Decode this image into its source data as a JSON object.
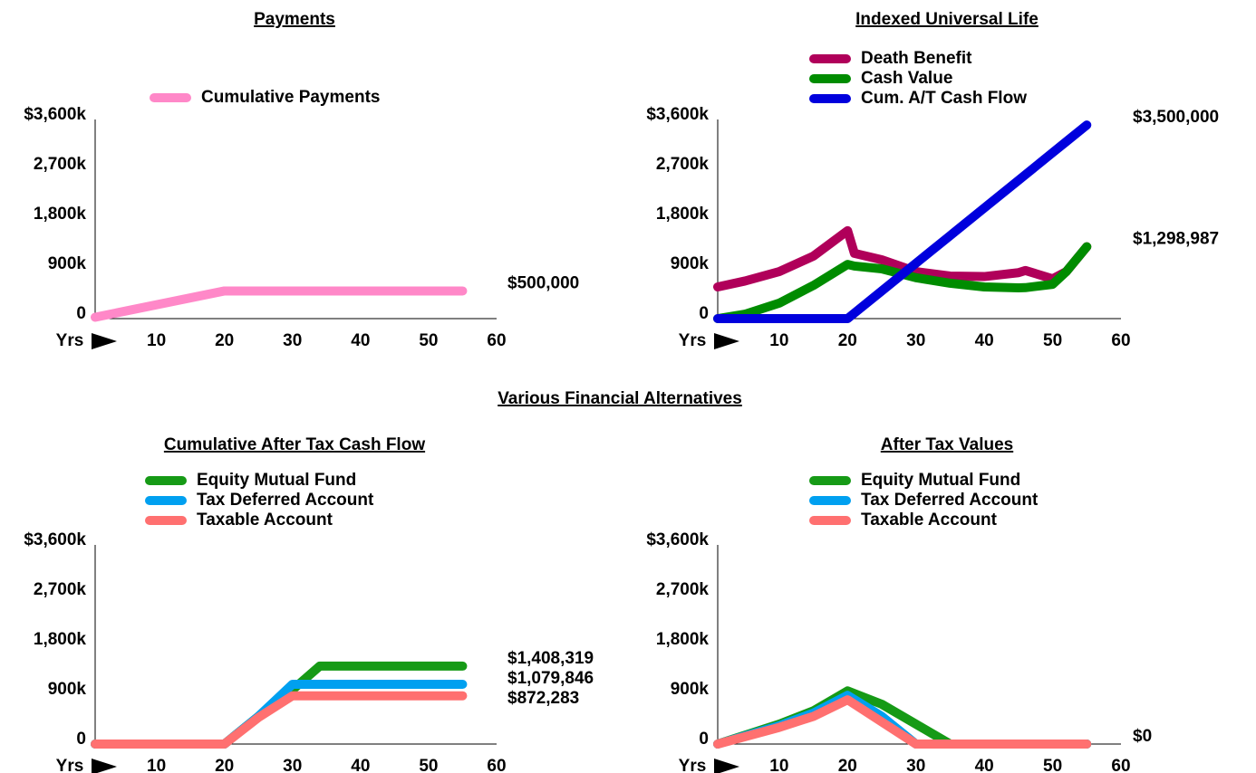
{
  "heading": "Various Financial Alternatives",
  "chart_data": [
    {
      "type": "line",
      "title": "Payments",
      "xlabel": "Yrs",
      "x": [
        1,
        20,
        55
      ],
      "xlim": [
        1,
        60
      ],
      "xticks": [
        10,
        20,
        30,
        40,
        50,
        60
      ],
      "ylim": [
        0,
        3600000
      ],
      "yticks": [
        0,
        {
          "value": 900000,
          "label": "900k"
        },
        {
          "value": 1800000,
          "label": "1,800k"
        },
        {
          "value": 2700000,
          "label": "2,700k"
        },
        {
          "value": 3600000,
          "label": "$3,600k"
        }
      ],
      "series": [
        {
          "name": "Cumulative Payments",
          "color": "#ff88c8",
          "values": [
            25000,
            500000,
            500000
          ],
          "end_label": "$500,000"
        }
      ]
    },
    {
      "type": "line",
      "title": "Indexed Universal Life",
      "xlabel": "Yrs",
      "x": [
        1,
        5,
        10,
        15,
        20,
        21,
        25,
        30,
        35,
        40,
        45,
        46,
        50,
        52,
        55
      ],
      "xlim": [
        1,
        60
      ],
      "xticks": [
        10,
        20,
        30,
        40,
        50,
        60
      ],
      "ylim": [
        0,
        3600000
      ],
      "yticks": [
        0,
        {
          "value": 900000,
          "label": "900k"
        },
        {
          "value": 1800000,
          "label": "1,800k"
        },
        {
          "value": 2700000,
          "label": "2,700k"
        },
        {
          "value": 3600000,
          "label": "$3,600k"
        }
      ],
      "series": [
        {
          "name": "Death Benefit",
          "color": "#b0005a",
          "values": [
            573000,
            680000,
            850000,
            1130000,
            1590000,
            1180000,
            1064000,
            850000,
            770000,
            760000,
            830000,
            870000,
            720000,
            850000,
            1298987
          ]
        },
        {
          "name": "Cash Value",
          "color": "#008c00",
          "values": [
            0,
            80000,
            280000,
            600000,
            980000,
            950000,
            900000,
            740000,
            640000,
            573000,
            556000,
            560000,
            620000,
            850000,
            1298987
          ],
          "end_label": "$1,298,987"
        },
        {
          "name": "Cum. A/T Cash Flow",
          "color": "#0000dd",
          "values": [
            0,
            0,
            0,
            0,
            0,
            100000,
            500000,
            1000000,
            1500000,
            2000000,
            2500000,
            2600000,
            3000000,
            3200000,
            3500000
          ],
          "end_label": "$3,500,000"
        }
      ]
    },
    {
      "type": "line",
      "title": "Cumulative After Tax Cash Flow",
      "xlabel": "Yrs",
      "x": [
        1,
        20,
        25,
        30,
        34,
        55
      ],
      "xlim": [
        1,
        60
      ],
      "xticks": [
        10,
        20,
        30,
        40,
        50,
        60
      ],
      "ylim": [
        0,
        3600000
      ],
      "yticks": [
        0,
        {
          "value": 900000,
          "label": "900k"
        },
        {
          "value": 1800000,
          "label": "1,800k"
        },
        {
          "value": 2700000,
          "label": "2,700k"
        },
        {
          "value": 3600000,
          "label": "$3,600k"
        }
      ],
      "series": [
        {
          "name": "Equity Mutual Fund",
          "color": "#169a16",
          "values": [
            0,
            0,
            500000,
            980000,
            1408319,
            1408319
          ],
          "end_label": "$1,408,319"
        },
        {
          "name": "Tax Deferred Account",
          "color": "#00a0f0",
          "values": [
            0,
            0,
            500000,
            1079846,
            1079846,
            1079846
          ],
          "end_label": "$1,079,846"
        },
        {
          "name": "Taxable Account",
          "color": "#ff7070",
          "values": [
            0,
            0,
            480000,
            872283,
            872283,
            872283
          ],
          "end_label": "$872,283"
        }
      ]
    },
    {
      "type": "line",
      "title": "After Tax Values",
      "xlabel": "Yrs",
      "x": [
        1,
        10,
        15,
        20,
        25,
        30,
        35,
        55
      ],
      "xlim": [
        1,
        60
      ],
      "xticks": [
        10,
        20,
        30,
        40,
        50,
        60
      ],
      "ylim": [
        0,
        3600000
      ],
      "yticks": [
        0,
        {
          "value": 900000,
          "label": "900k"
        },
        {
          "value": 1800000,
          "label": "1,800k"
        },
        {
          "value": 2700000,
          "label": "2,700k"
        },
        {
          "value": 3600000,
          "label": "$3,600k"
        }
      ],
      "series": [
        {
          "name": "Equity Mutual Fund",
          "color": "#169a16",
          "values": [
            0,
            360000,
            600000,
            960000,
            720000,
            360000,
            0,
            0
          ],
          "end_label": "$0"
        },
        {
          "name": "Tax Deferred Account",
          "color": "#00a0f0",
          "values": [
            0,
            330000,
            560000,
            880000,
            500000,
            0,
            0,
            0
          ]
        },
        {
          "name": "Taxable Account",
          "color": "#ff7070",
          "values": [
            0,
            300000,
            500000,
            800000,
            400000,
            0,
            0,
            0
          ]
        }
      ]
    }
  ]
}
